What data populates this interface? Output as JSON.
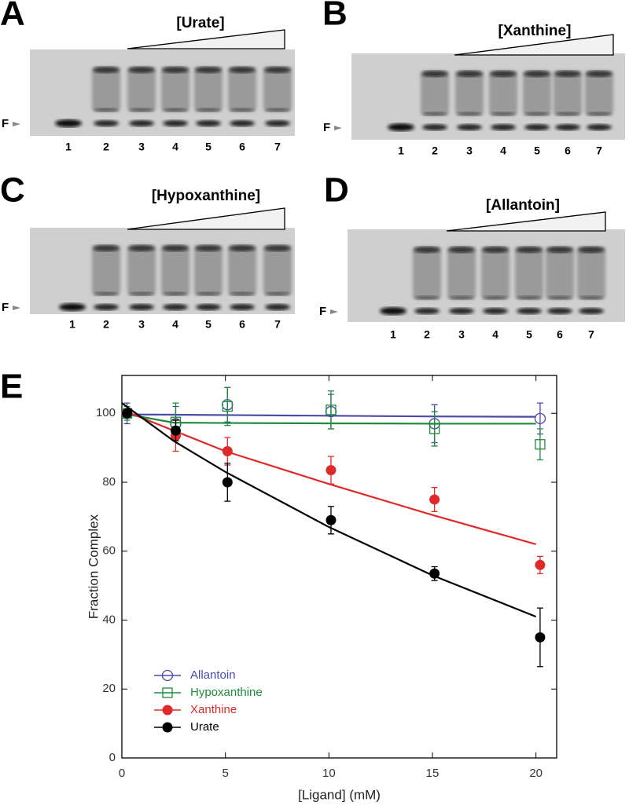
{
  "gels": [
    {
      "panel": "A",
      "ligand": "[Urate]",
      "free_label": "F",
      "lanes": [
        "1",
        "2",
        "3",
        "4",
        "5",
        "6",
        "7"
      ]
    },
    {
      "panel": "B",
      "ligand": "[Xanthine]",
      "free_label": "F",
      "lanes": [
        "1",
        "2",
        "3",
        "4",
        "5",
        "6",
        "7"
      ]
    },
    {
      "panel": "C",
      "ligand": "[Hypoxanthine]",
      "free_label": "F",
      "lanes": [
        "1",
        "2",
        "3",
        "4",
        "5",
        "6",
        "7"
      ]
    },
    {
      "panel": "D",
      "ligand": "[Allantoin]",
      "free_label": "F",
      "lanes": [
        "1",
        "2",
        "3",
        "4",
        "5",
        "6",
        "7"
      ]
    }
  ],
  "chart_data": {
    "type": "scatter",
    "panel": "E",
    "x_label": "[Ligand] (mM)",
    "y_label": "Fraction Complex",
    "x": [
      0.25,
      2.6,
      5.1,
      10.1,
      15.1,
      20.2
    ],
    "fit_x": [
      0,
      2.5,
      5,
      10,
      15,
      20
    ],
    "xlim": [
      0,
      21
    ],
    "ylim": [
      0,
      111
    ],
    "xticks": [
      0,
      5,
      10,
      15,
      20
    ],
    "yticks": [
      0,
      20,
      40,
      60,
      80,
      100
    ],
    "legend": "lower left",
    "series": [
      {
        "name": "Allantoin",
        "color": "#4a4aa8",
        "marker": "open-circle",
        "values": [
          100,
          97,
          102.5,
          100.5,
          97,
          98.5
        ],
        "errors": [
          3,
          5,
          5,
          5,
          5.5,
          4.5
        ],
        "fit": [
          99.7,
          99.6,
          99.5,
          99.3,
          99.1,
          99
        ]
      },
      {
        "name": "Hypoxanthine",
        "color": "#1f8a3a",
        "marker": "open-square",
        "values": [
          100,
          97.5,
          102,
          101,
          95.5,
          91
        ],
        "errors": [
          2,
          5.5,
          5.5,
          5.5,
          5,
          4.5
        ],
        "fit": [
          100,
          97.3,
          97.2,
          97.1,
          97,
          97
        ]
      },
      {
        "name": "Xanthine",
        "color": "#e02a2a",
        "marker": "filled-circle",
        "values": [
          100,
          93.5,
          89,
          83.5,
          75,
          56
        ],
        "errors": [
          1,
          4.5,
          4,
          4,
          3.5,
          2.5
        ],
        "fit": [
          101,
          95,
          89,
          79.5,
          70.5,
          62
        ]
      },
      {
        "name": "Urate",
        "color": "#000000",
        "marker": "filled-circle",
        "values": [
          100,
          95,
          80,
          69,
          53.5,
          35
        ],
        "errors": [
          1,
          3,
          5.5,
          4,
          2,
          8.5
        ],
        "fit": [
          103,
          92,
          83,
          67,
          53,
          41
        ]
      }
    ]
  }
}
